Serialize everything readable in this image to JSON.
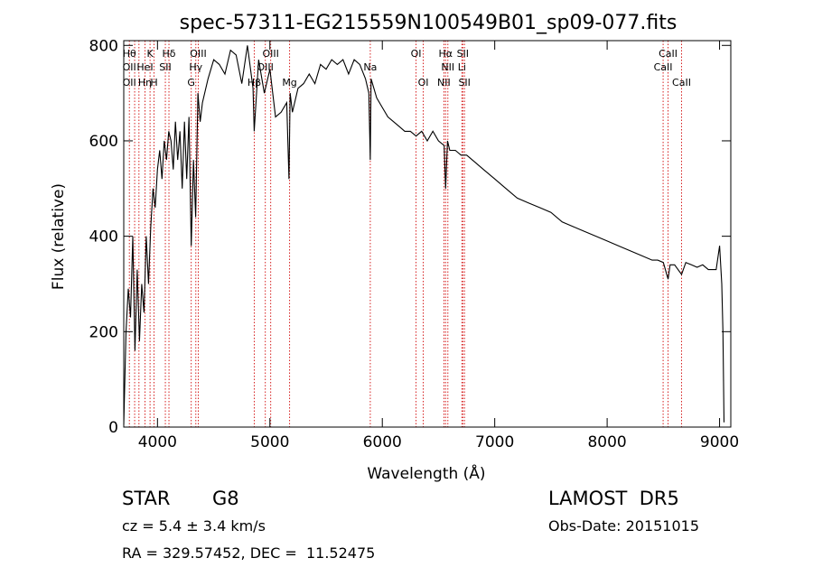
{
  "chart_data": {
    "type": "line",
    "title": "spec-57311-EG215559N100549B01_sp09-077.fits",
    "xlabel": "Wavelength (Å)",
    "ylabel": "Flux (relative)",
    "xlim": [
      3700,
      9100
    ],
    "ylim": [
      0,
      810
    ],
    "xticks": [
      4000,
      5000,
      6000,
      7000,
      8000,
      9000
    ],
    "yticks": [
      0,
      200,
      400,
      600,
      800
    ],
    "grid": false,
    "line_color": "#000000",
    "marker_color": "#d62020",
    "series": [
      {
        "x": [
          3700,
          3720,
          3740,
          3760,
          3780,
          3800,
          3820,
          3840,
          3860,
          3880,
          3900,
          3920,
          3940,
          3960,
          3980,
          4000,
          4020,
          4040,
          4060,
          4080,
          4100,
          4120,
          4140,
          4160,
          4180,
          4200,
          4220,
          4240,
          4260,
          4280,
          4300,
          4320,
          4340,
          4360,
          4380,
          4400,
          4450,
          4500,
          4550,
          4600,
          4650,
          4700,
          4750,
          4800,
          4850,
          4860,
          4900,
          4950,
          5000,
          5050,
          5100,
          5150,
          5170,
          5180,
          5200,
          5250,
          5300,
          5350,
          5400,
          5450,
          5500,
          5550,
          5600,
          5650,
          5700,
          5750,
          5800,
          5850,
          5880,
          5893,
          5900,
          5950,
          6000,
          6050,
          6100,
          6150,
          6200,
          6250,
          6300,
          6350,
          6400,
          6450,
          6500,
          6550,
          6563,
          6580,
          6600,
          6650,
          6700,
          6750,
          6800,
          6900,
          7000,
          7100,
          7200,
          7300,
          7400,
          7500,
          7600,
          7700,
          7800,
          7900,
          8000,
          8100,
          8200,
          8300,
          8400,
          8450,
          8500,
          8542,
          8560,
          8600,
          8662,
          8700,
          8750,
          8800,
          8850,
          8900,
          8950,
          8970,
          9000,
          9020,
          9030,
          9040
        ],
        "y": [
          5,
          200,
          290,
          230,
          400,
          160,
          330,
          180,
          300,
          240,
          400,
          300,
          420,
          500,
          460,
          540,
          580,
          520,
          600,
          560,
          620,
          600,
          540,
          640,
          560,
          620,
          500,
          640,
          520,
          650,
          380,
          560,
          440,
          700,
          640,
          680,
          730,
          770,
          760,
          740,
          790,
          780,
          720,
          800,
          710,
          620,
          770,
          700,
          750,
          650,
          660,
          680,
          520,
          700,
          660,
          710,
          720,
          740,
          720,
          760,
          750,
          770,
          760,
          770,
          740,
          770,
          760,
          730,
          700,
          560,
          730,
          690,
          670,
          650,
          640,
          630,
          620,
          620,
          610,
          620,
          600,
          620,
          600,
          590,
          500,
          600,
          580,
          580,
          570,
          570,
          560,
          540,
          520,
          500,
          480,
          470,
          460,
          450,
          430,
          420,
          410,
          400,
          390,
          380,
          370,
          360,
          350,
          350,
          345,
          310,
          340,
          340,
          320,
          345,
          340,
          335,
          340,
          330,
          330,
          330,
          380,
          300,
          200,
          10
        ]
      }
    ],
    "lines": [
      {
        "x": 3750,
        "labels": [
          "Hθ",
          "OII",
          "OII"
        ]
      },
      {
        "x": 3797,
        "labels": [
          ""
        ]
      },
      {
        "x": 3835,
        "labels": [
          ""
        ]
      },
      {
        "x": 3889,
        "labels": [
          "",
          "HeI",
          "Hη"
        ]
      },
      {
        "x": 3934,
        "labels": [
          "K"
        ]
      },
      {
        "x": 3969,
        "labels": [
          "",
          "",
          "H"
        ]
      },
      {
        "x": 4070,
        "labels": [
          "",
          "SII"
        ]
      },
      {
        "x": 4102,
        "labels": [
          "Hδ"
        ]
      },
      {
        "x": 4300,
        "labels": [
          "",
          "",
          "G"
        ]
      },
      {
        "x": 4341,
        "labels": [
          "",
          "Hγ"
        ]
      },
      {
        "x": 4363,
        "labels": [
          "OIII"
        ]
      },
      {
        "x": 4861,
        "labels": [
          "",
          "",
          "Hβ"
        ]
      },
      {
        "x": 4959,
        "labels": [
          "",
          "OIII"
        ]
      },
      {
        "x": 5007,
        "labels": [
          "OIII"
        ]
      },
      {
        "x": 5175,
        "labels": [
          "",
          "",
          "Mg"
        ]
      },
      {
        "x": 5893,
        "labels": [
          "",
          "Na"
        ]
      },
      {
        "x": 6300,
        "labels": [
          "OI"
        ]
      },
      {
        "x": 6364,
        "labels": [
          "",
          "",
          "OI"
        ]
      },
      {
        "x": 6548,
        "labels": [
          "",
          "",
          "NII"
        ]
      },
      {
        "x": 6563,
        "labels": [
          "Hα"
        ]
      },
      {
        "x": 6583,
        "labels": [
          "",
          "NII"
        ]
      },
      {
        "x": 6708,
        "labels": [
          "",
          "Li"
        ]
      },
      {
        "x": 6716,
        "labels": [
          "SII"
        ]
      },
      {
        "x": 6731,
        "labels": [
          "",
          "",
          "SII"
        ]
      },
      {
        "x": 8498,
        "labels": [
          "",
          "CaII"
        ]
      },
      {
        "x": 8542,
        "labels": [
          "CaII"
        ]
      },
      {
        "x": 8662,
        "labels": [
          "",
          "",
          "CaII"
        ]
      }
    ]
  },
  "info": {
    "object_class": "STAR",
    "subclass": "G8",
    "redshift_line": "cz = 5.4 ± 3.4 km/s",
    "coordinates_line": "RA = 329.57452, DEC =  11.52475",
    "survey": "LAMOST  DR5",
    "obs_date_line": "Obs-Date: 20151015"
  }
}
